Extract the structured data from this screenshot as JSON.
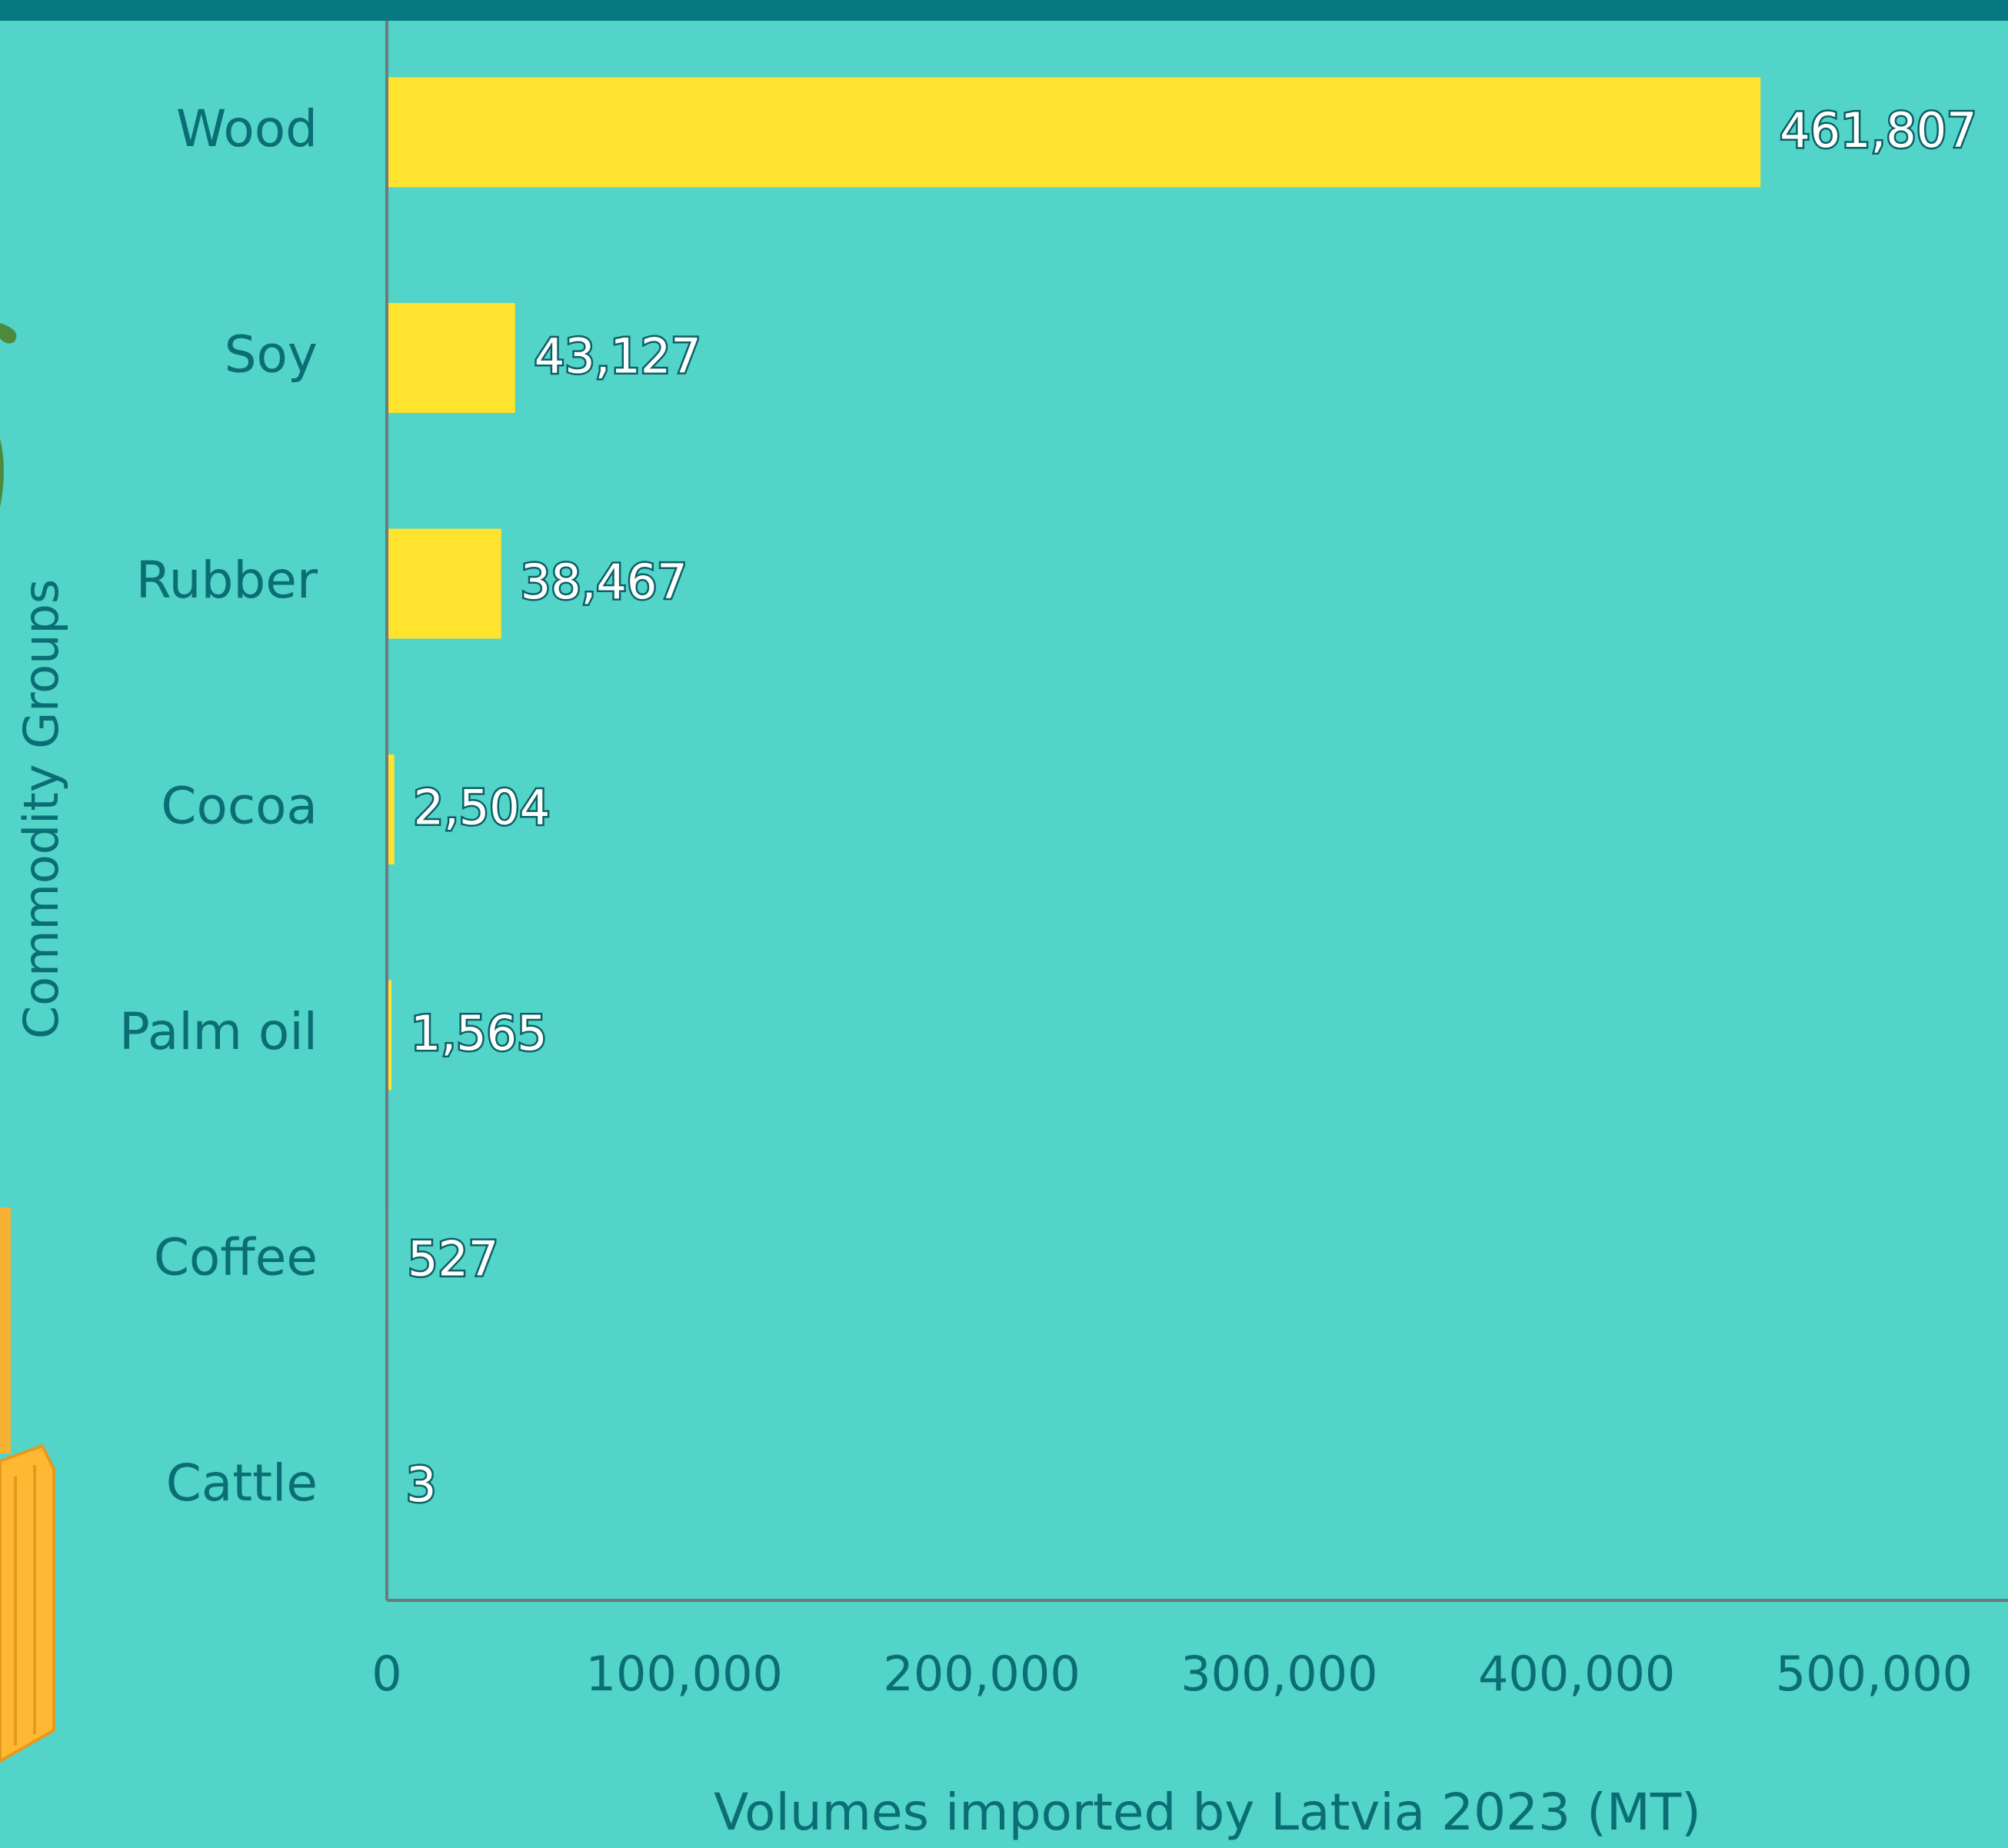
{
  "chart_data": {
    "type": "barh",
    "x_label": "Volumes imported by Latvia 2023 (MT)",
    "y_label": "Commodity Groups",
    "categories": [
      "Wood",
      "Soy",
      "Rubber",
      "Cocoa",
      "Palm oil",
      "Coffee",
      "Cattle"
    ],
    "values": [
      461807,
      43127,
      38467,
      2504,
      1565,
      527,
      3
    ],
    "value_labels": [
      "461,807",
      "43,127",
      "38,467",
      "2,504",
      "1,565",
      "527",
      "3"
    ],
    "color": "#ffe32e",
    "xlim": [
      0,
      545000
    ],
    "xticks": [
      0,
      {
        "value": 100000,
        "label": "100,000"
      },
      {
        "value": 200000,
        "label": "200,000"
      },
      {
        "value": 300000,
        "label": "300,000"
      },
      {
        "value": 400000,
        "label": "400,000"
      },
      {
        "value": 500000,
        "label": "500,000"
      }
    ]
  }
}
